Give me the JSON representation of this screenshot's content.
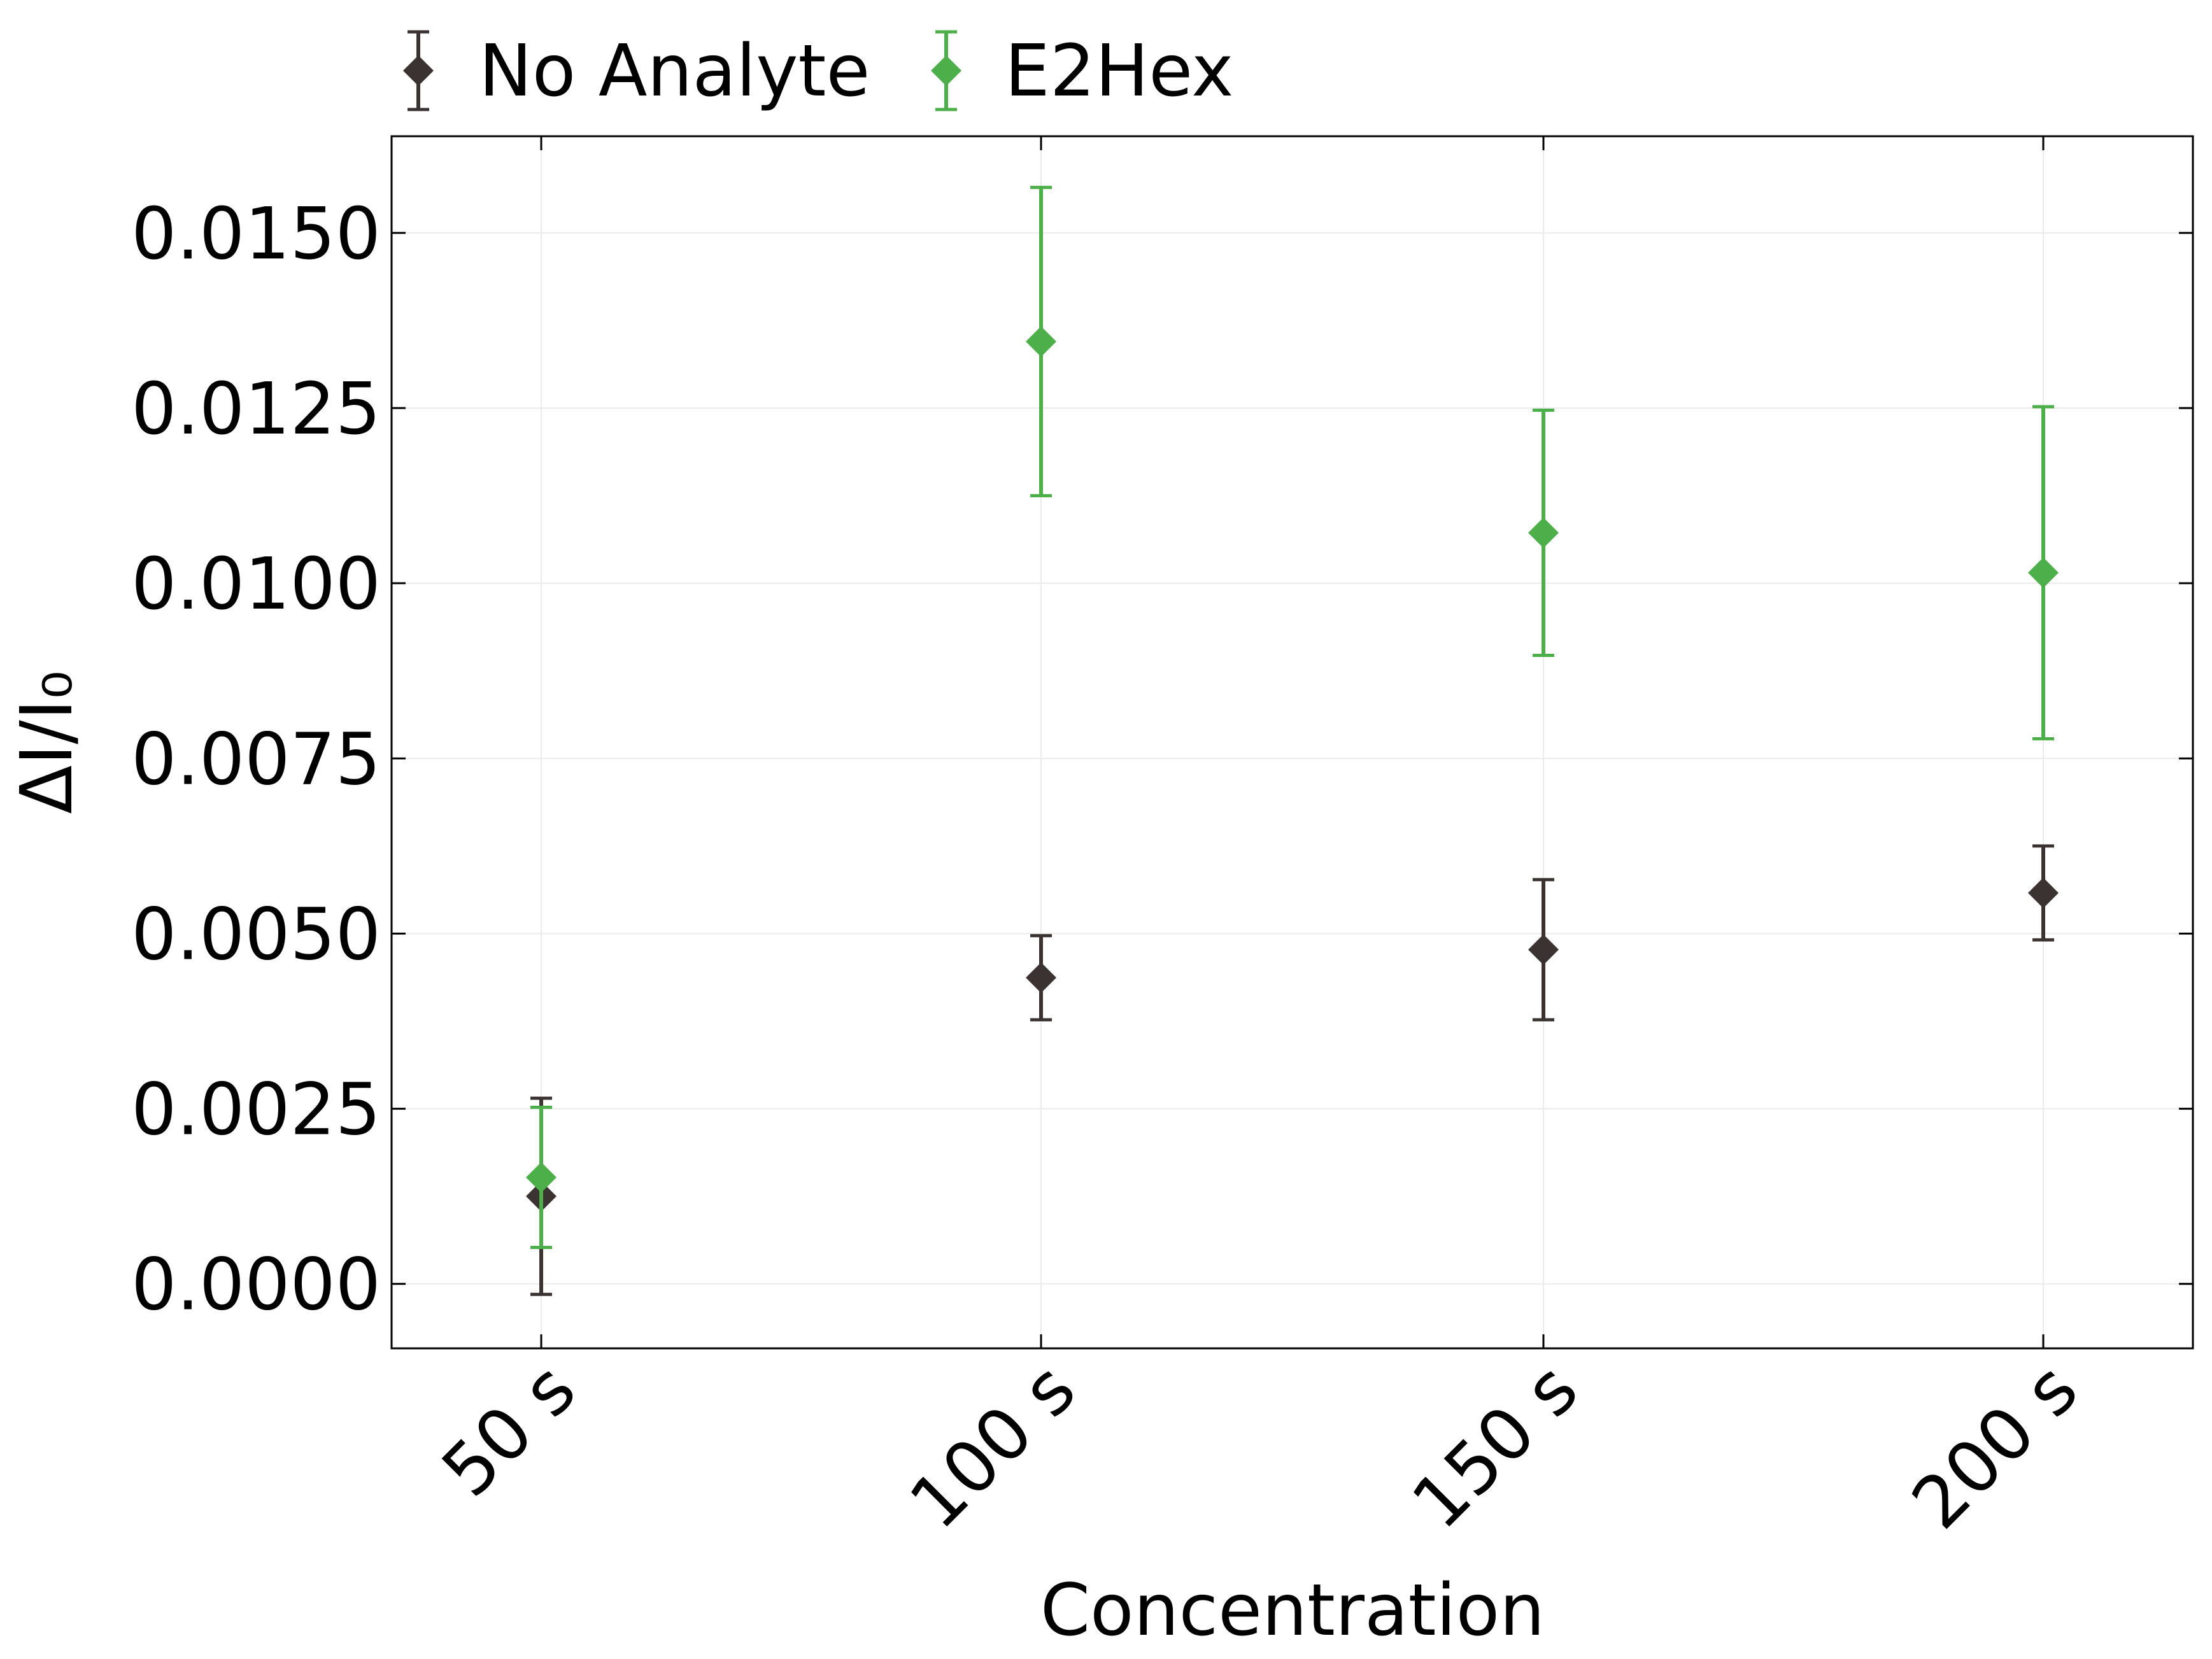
{
  "chart_data": {
    "type": "scatter",
    "title": "",
    "xlabel": "Concentration",
    "ylabel": "ΔI/I₀",
    "categories": [
      "50 s",
      "100 s",
      "150 s",
      "200 s"
    ],
    "y_ticks": [
      0.0,
      0.0025,
      0.005,
      0.0075,
      0.01,
      0.0125,
      0.015
    ],
    "y_tick_labels": [
      "0.0000",
      "0.0025",
      "0.0050",
      "0.0075",
      "0.0100",
      "0.0125",
      "0.0150"
    ],
    "ylim": [
      -0.00092,
      0.01638
    ],
    "grid": true,
    "legend_position": "top-left, above plot",
    "series": [
      {
        "name": "No Analyte",
        "color": "#3b3331",
        "marker": "diamond",
        "values": [
          0.00125,
          0.00437,
          0.00477,
          0.00558
        ],
        "errors": [
          0.0014,
          0.0006,
          0.001,
          0.00067
        ]
      },
      {
        "name": "E2Hex",
        "color": "#4daf4a",
        "marker": "diamond",
        "values": [
          0.00152,
          0.01345,
          0.01072,
          0.01015
        ],
        "errors": [
          0.001,
          0.0022,
          0.00175,
          0.00237
        ]
      }
    ]
  }
}
